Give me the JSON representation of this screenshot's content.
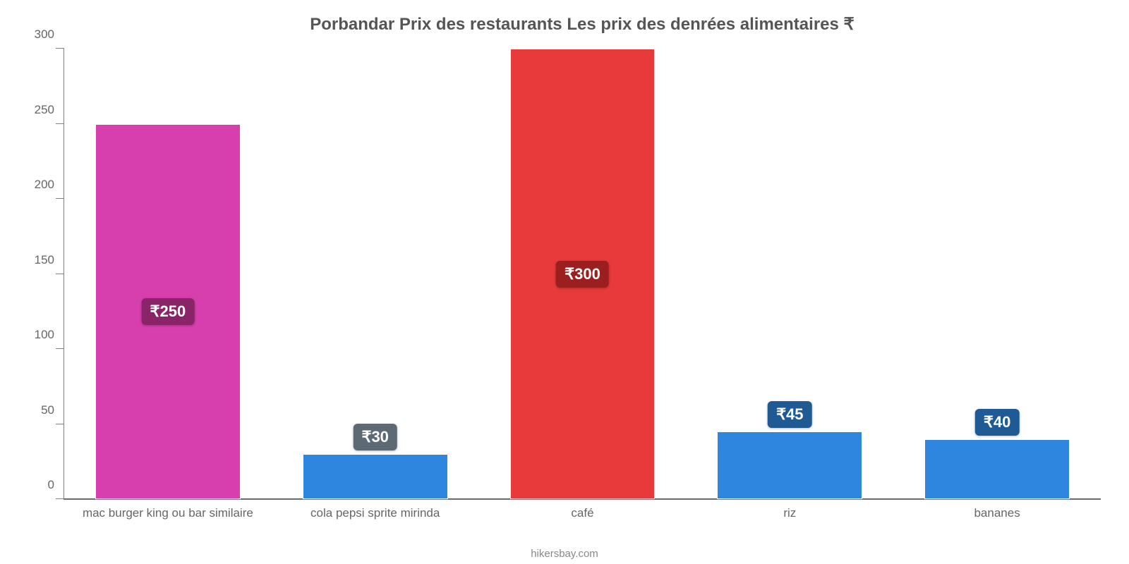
{
  "chart": {
    "type": "bar",
    "title": "Porbandar Prix des restaurants Les prix des denrées alimentaires ₹",
    "title_fontsize": 24,
    "title_color": "#555555",
    "attribution": "hikersbay.com",
    "attribution_color": "#888888",
    "background_color": "#ffffff",
    "axis_color": "#808080",
    "ylim": [
      0,
      300
    ],
    "ytick_step": 50,
    "yticks": [
      0,
      50,
      100,
      150,
      200,
      250,
      300
    ],
    "tick_font_color": "#666666",
    "tick_fontsize": 17,
    "currency_symbol": "₹",
    "bar_width_pct": 14,
    "bars": [
      {
        "category": "mac burger king ou bar similaire",
        "value": 250,
        "label": "₹250",
        "fill": "#d63fad",
        "label_bg": "#8a2468",
        "label_pos": "middle"
      },
      {
        "category": "cola pepsi sprite mirinda",
        "value": 30,
        "label": "₹30",
        "fill": "#2e86de",
        "label_bg": "#5d6a75",
        "label_pos": "above"
      },
      {
        "category": "café",
        "value": 300,
        "label": "₹300",
        "fill": "#e83a3a",
        "label_bg": "#9c1f1f",
        "label_pos": "middle"
      },
      {
        "category": "riz",
        "value": 45,
        "label": "₹45",
        "fill": "#2e86de",
        "label_bg": "#1f5a94",
        "label_pos": "above"
      },
      {
        "category": "bananes",
        "value": 40,
        "label": "₹40",
        "fill": "#2e86de",
        "label_bg": "#1f5a94",
        "label_pos": "above"
      }
    ]
  }
}
